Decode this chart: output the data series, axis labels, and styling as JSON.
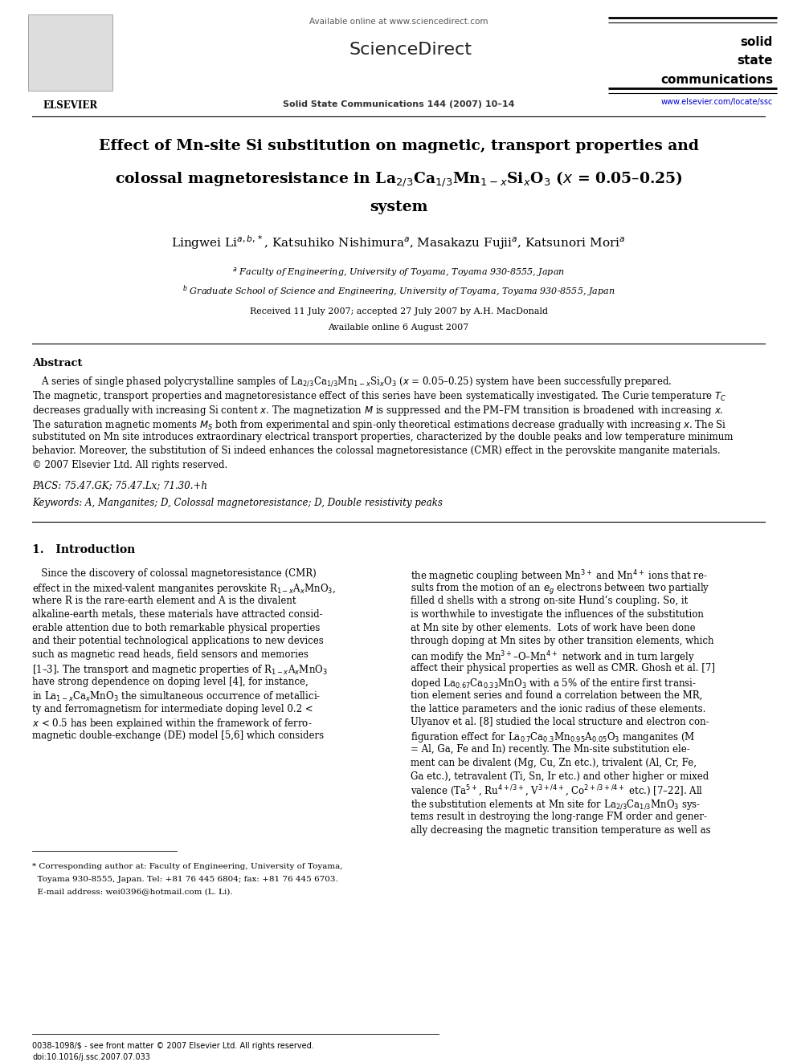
{
  "bg_color": "#ffffff",
  "page_width": 9.92,
  "page_height": 13.23,
  "dpi": 100,
  "header": {
    "available_online": "Available online at www.sciencedirect.com",
    "sciencedirect": "ScienceDirect",
    "journal_ref": "Solid State Communications 144 (2007) 10–14",
    "solid": "solid",
    "state": "state",
    "communications": "communications",
    "url": "www.elsevier.com/locate/ssc",
    "elsevier_text": "ELSEVIER"
  },
  "title_line1": "Effect of Mn-site Si substitution on magnetic, transport properties and",
  "title_line2": "colossal magnetoresistance in La$_{2/3}$Ca$_{1/3}$Mn$_{1-x}$Si$_x$O$_3$ ($x$ = 0.05–0.25)",
  "title_line3": "system",
  "authors": "Lingwei Li$^{a,b,*}$, Katsuhiko Nishimura$^a$, Masakazu Fujii$^a$, Katsunori Mori$^a$",
  "affil_a": "$^a$ Faculty of Engineering, University of Toyama, Toyama 930-8555, Japan",
  "affil_b": "$^b$ Graduate School of Science and Engineering, University of Toyama, Toyama 930-8555, Japan",
  "received": "Received 11 July 2007; accepted 27 July 2007 by A.H. MacDonald",
  "available_online_date": "Available online 6 August 2007",
  "abstract_title": "Abstract",
  "abstract_lines": [
    "   A series of single phased polycrystalline samples of La$_{2/3}$Ca$_{1/3}$Mn$_{1-x}$Si$_x$O$_3$ ($x$ = 0.05–0.25) system have been successfully prepared.",
    "The magnetic, transport properties and magnetoresistance effect of this series have been systematically investigated. The Curie temperature $T_C$",
    "decreases gradually with increasing Si content $x$. The magnetization $M$ is suppressed and the PM–FM transition is broadened with increasing $x$.",
    "The saturation magnetic moments $M_S$ both from experimental and spin-only theoretical estimations decrease gradually with increasing $x$. The Si",
    "substituted on Mn site introduces extraordinary electrical transport properties, characterized by the double peaks and low temperature minimum",
    "behavior. Moreover, the substitution of Si indeed enhances the colossal magnetoresistance (CMR) effect in the perovskite manganite materials.",
    "© 2007 Elsevier Ltd. All rights reserved."
  ],
  "pacs": "PACS: 75.47.GK; 75.47.Lx; 71.30.+h",
  "keywords": "Keywords: A, Manganites; D, Colossal magnetoresistance; D, Double resistivity peaks",
  "intro_title": "1.   Introduction",
  "intro_col1_lines": [
    "   Since the discovery of colossal magnetoresistance (CMR)",
    "effect in the mixed-valent manganites perovskite R$_{1-x}$A$_x$MnO$_3$,",
    "where R is the rare-earth element and A is the divalent",
    "alkaline-earth metals, these materials have attracted consid-",
    "erable attention due to both remarkable physical properties",
    "and their potential technological applications to new devices",
    "such as magnetic read heads, field sensors and memories",
    "[1–3]. The transport and magnetic properties of R$_{1-x}$A$_x$MnO$_3$",
    "have strong dependence on doping level [4], for instance,",
    "in La$_{1-x}$Ca$_x$MnO$_3$ the simultaneous occurrence of metallici-",
    "ty and ferromagnetism for intermediate doping level 0.2 <",
    "$x$ < 0.5 has been explained within the framework of ferro-",
    "magnetic double-exchange (DE) model [5,6] which considers"
  ],
  "intro_col2_lines": [
    "the magnetic coupling between Mn$^{3+}$ and Mn$^{4+}$ ions that re-",
    "sults from the motion of an $e_g$ electrons between two partially",
    "filled d shells with a strong on-site Hund’s coupling. So, it",
    "is worthwhile to investigate the influences of the substitution",
    "at Mn site by other elements.  Lots of work have been done",
    "through doping at Mn sites by other transition elements, which",
    "can modify the Mn$^{3+}$–O–Mn$^{4+}$ network and in turn largely",
    "affect their physical properties as well as CMR. Ghosh et al. [7]",
    "doped La$_{0.67}$Ca$_{0.33}$MnO$_3$ with a 5% of the entire first transi-",
    "tion element series and found a correlation between the MR,",
    "the lattice parameters and the ionic radius of these elements.",
    "Ulyanov et al. [8] studied the local structure and electron con-",
    "figuration effect for La$_{0.7}$Ca$_{0.3}$Mn$_{0.95}$A$_{0.05}$O$_3$ manganites (M",
    "= Al, Ga, Fe and In) recently. The Mn-site substitution ele-",
    "ment can be divalent (Mg, Cu, Zn etc.), trivalent (Al, Cr, Fe,",
    "Ga etc.), tetravalent (Ti, Sn, Ir etc.) and other higher or mixed",
    "valence (Ta$^{5+}$, Ru$^{4+/3+}$, V$^{3+/4+}$, Co$^{2+/3+/4+}$ etc.) [7–22]. All",
    "the substitution elements at Mn site for La$_{2/3}$Ca$_{1/3}$MnO$_3$ sys-",
    "tems result in destroying the long-range FM order and gener-",
    "ally decreasing the magnetic transition temperature as well as"
  ],
  "footnote_star": "* Corresponding author at: Faculty of Engineering, University of Toyama,",
  "footnote_star2": "  Toyama 930-8555, Japan. Tel: +81 76 445 6804; fax: +81 76 445 6703.",
  "footnote_email": "  E-mail address: wei0396@hotmail.com (L. Li).",
  "footer_line1": "0038-1098/$ - see front matter © 2007 Elsevier Ltd. All rights reserved.",
  "footer_line2": "doi:10.1016/j.ssc.2007.07.033"
}
